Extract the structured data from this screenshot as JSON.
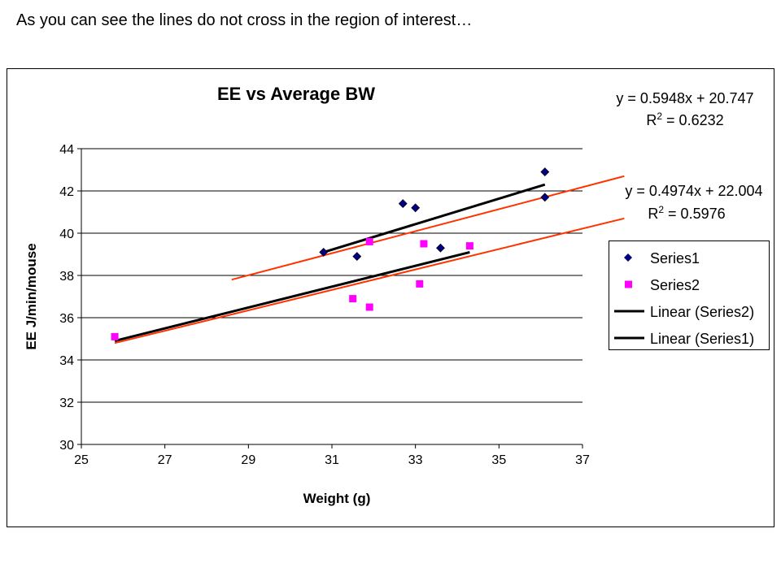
{
  "slide": {
    "caption": "As you can see the lines do not cross in the region of interest…"
  },
  "equations": [
    {
      "eq": "y = 0.5948x + 20.747",
      "r2_prefix": "R",
      "r2_exp": "2",
      "r2_rest": " = 0.6232"
    },
    {
      "eq": "y = 0.4974x + 22.004",
      "r2_prefix": "R",
      "r2_exp": "2",
      "r2_rest": " = 0.5976"
    }
  ],
  "colors": {
    "series1": "#000080",
    "series2": "#ff00ff",
    "trend_black": "#000000",
    "trend_orange": "#ff3300"
  },
  "chart_data": {
    "type": "scatter",
    "title": "EE  vs Average BW",
    "xlabel": "Weight (g)",
    "ylabel": "EE J/min/mouse",
    "xlim": [
      25,
      37
    ],
    "ylim": [
      30,
      44
    ],
    "xticks": [
      25,
      27,
      29,
      31,
      33,
      35,
      37
    ],
    "yticks": [
      30,
      32,
      34,
      36,
      38,
      40,
      42,
      44
    ],
    "grid": "horizontal",
    "legend": "right",
    "series": [
      {
        "name": "Series1",
        "marker": "diamond",
        "points": [
          [
            30.8,
            39.1
          ],
          [
            31.6,
            38.9
          ],
          [
            32.7,
            41.4
          ],
          [
            33.0,
            41.2
          ],
          [
            33.6,
            39.3
          ],
          [
            36.1,
            42.9
          ],
          [
            36.1,
            41.7
          ]
        ]
      },
      {
        "name": "Series2",
        "marker": "square",
        "points": [
          [
            25.8,
            35.1
          ],
          [
            31.5,
            36.9
          ],
          [
            31.9,
            39.6
          ],
          [
            31.9,
            36.5
          ],
          [
            33.1,
            37.6
          ],
          [
            33.2,
            39.5
          ],
          [
            34.3,
            39.4
          ]
        ]
      }
    ],
    "trendlines": [
      {
        "name": "Linear (Series2)",
        "color": "trend_black",
        "from": [
          25.8,
          34.9
        ],
        "to": [
          34.3,
          39.1
        ]
      },
      {
        "name": "Linear (Series1)",
        "color": "trend_black",
        "from": [
          30.8,
          39.1
        ],
        "to": [
          36.1,
          42.3
        ]
      },
      {
        "name": "",
        "color": "trend_orange",
        "from": [
          28.6,
          37.8
        ],
        "to": [
          38.0,
          42.7
        ]
      },
      {
        "name": "",
        "color": "trend_orange",
        "from": [
          25.8,
          34.8
        ],
        "to": [
          38.0,
          40.7
        ]
      }
    ],
    "legend_entries": [
      {
        "label": "Series1",
        "symbol": "diamond",
        "color": "series1"
      },
      {
        "label": "Series2",
        "symbol": "square",
        "color": "series2"
      },
      {
        "label": "Linear (Series2)",
        "symbol": "line",
        "color": "trend_black"
      },
      {
        "label": "Linear (Series1)",
        "symbol": "line",
        "color": "trend_black"
      }
    ]
  }
}
